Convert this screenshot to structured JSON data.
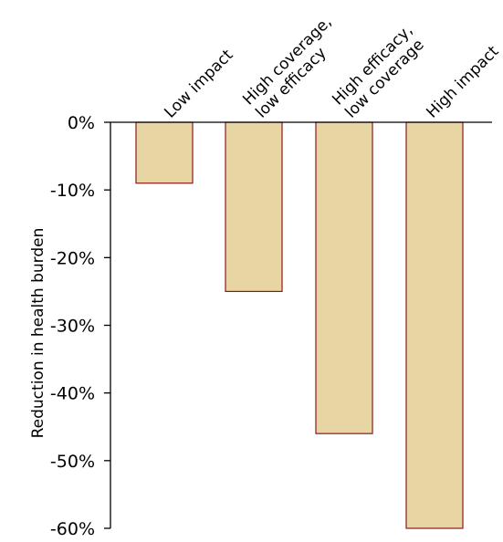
{
  "chart_data": {
    "type": "bar",
    "title": "",
    "xlabel": "",
    "ylabel": "Reduction in health burden",
    "categories": [
      [
        "Low impact"
      ],
      [
        "High coverage,",
        "low efficacy"
      ],
      [
        "High efficacy,",
        "low coverage"
      ],
      [
        "High impact"
      ]
    ],
    "values": [
      -9,
      -25,
      -46,
      -60
    ],
    "ylim": [
      -60,
      0
    ],
    "yticks": [
      0,
      -10,
      -20,
      -30,
      -40,
      -50,
      -60
    ],
    "ytick_labels": [
      "0%",
      "-10%",
      "-20%",
      "-30%",
      "-40%",
      "-50%",
      "-60%"
    ],
    "grid": false,
    "legend": "none",
    "bar_fill": "#e8d5a4",
    "bar_stroke": "#8b1a1a",
    "axis_color": "#000000"
  }
}
